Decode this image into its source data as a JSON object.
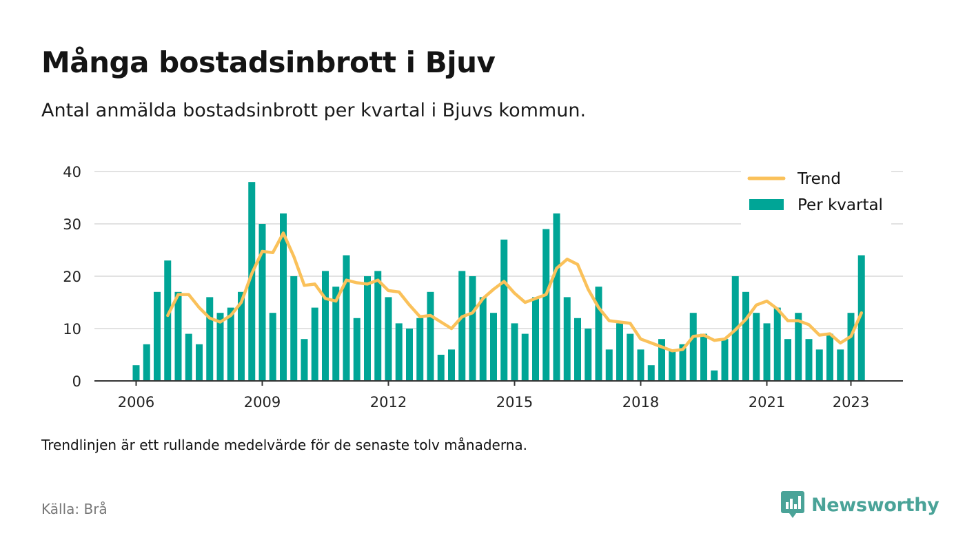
{
  "header": {
    "title": "Många bostadsinbrott i Bjuv",
    "subtitle": "Antal anmälda bostadsinbrott per kvartal i Bjuvs kommun."
  },
  "footer": {
    "note": "Trendlinjen är ett rullande medelvärde för de senaste tolv månaderna.",
    "source": "Källa: Brå",
    "brand": "Newsworthy",
    "brand_icon": "newsworthy-logo-icon"
  },
  "colors": {
    "bars": "#00a596",
    "trend": "#fac15a",
    "grid": "#d9d9d9",
    "axis": "#333333",
    "brand": "#4aa398"
  },
  "chart_data": {
    "type": "bar",
    "title": "Många bostadsinbrott i Bjuv",
    "subtitle": "Antal anmälda bostadsinbrott per kvartal i Bjuvs kommun.",
    "xlabel": "",
    "ylabel": "",
    "ylim": [
      0,
      40
    ],
    "y_ticks": [
      0,
      10,
      20,
      30,
      40
    ],
    "x_ticks": [
      "2006",
      "2009",
      "2012",
      "2015",
      "2018",
      "2021",
      "2023"
    ],
    "grid": true,
    "legend_position": "top-right",
    "x_start": "2006-Q1",
    "categories": [
      "2006-Q1",
      "2006-Q2",
      "2006-Q3",
      "2006-Q4",
      "2007-Q1",
      "2007-Q2",
      "2007-Q3",
      "2007-Q4",
      "2008-Q1",
      "2008-Q2",
      "2008-Q3",
      "2008-Q4",
      "2009-Q1",
      "2009-Q2",
      "2009-Q3",
      "2009-Q4",
      "2010-Q1",
      "2010-Q2",
      "2010-Q3",
      "2010-Q4",
      "2011-Q1",
      "2011-Q2",
      "2011-Q3",
      "2011-Q4",
      "2012-Q1",
      "2012-Q2",
      "2012-Q3",
      "2012-Q4",
      "2013-Q1",
      "2013-Q2",
      "2013-Q3",
      "2013-Q4",
      "2014-Q1",
      "2014-Q2",
      "2014-Q3",
      "2014-Q4",
      "2015-Q1",
      "2015-Q2",
      "2015-Q3",
      "2015-Q4",
      "2016-Q1",
      "2016-Q2",
      "2016-Q3",
      "2016-Q4",
      "2017-Q1",
      "2017-Q2",
      "2017-Q3",
      "2017-Q4",
      "2018-Q1",
      "2018-Q2",
      "2018-Q3",
      "2018-Q4",
      "2019-Q1",
      "2019-Q2",
      "2019-Q3",
      "2019-Q4",
      "2020-Q1",
      "2020-Q2",
      "2020-Q3",
      "2020-Q4",
      "2021-Q1",
      "2021-Q2",
      "2021-Q3",
      "2021-Q4",
      "2022-Q1",
      "2022-Q2",
      "2022-Q3",
      "2022-Q4",
      "2023-Q1",
      "2023-Q2"
    ],
    "series": [
      {
        "name": "Per kvartal",
        "type": "bar",
        "values": [
          3,
          7,
          17,
          23,
          17,
          9,
          7,
          16,
          13,
          14,
          17,
          38,
          30,
          13,
          32,
          20,
          8,
          14,
          21,
          18,
          24,
          12,
          20,
          21,
          16,
          11,
          10,
          12,
          17,
          5,
          6,
          21,
          20,
          16,
          13,
          27,
          11,
          9,
          16,
          29,
          32,
          16,
          12,
          10,
          18,
          6,
          11,
          9,
          6,
          3,
          8,
          6,
          7,
          13,
          9,
          2,
          8,
          20,
          17,
          13,
          11,
          14,
          8,
          13,
          8,
          6,
          9,
          6,
          13,
          24
        ]
      },
      {
        "name": "Trend",
        "type": "line",
        "values": [
          null,
          null,
          null,
          12.5,
          16.5,
          16.5,
          14,
          12,
          11.25,
          12.5,
          15,
          20.5,
          24.75,
          24.5,
          28.25,
          23.75,
          18.25,
          18.5,
          15.75,
          15.25,
          19.25,
          18.75,
          18.5,
          19.25,
          17.25,
          17,
          14.5,
          12.25,
          12.5,
          11.25,
          10,
          12.25,
          13,
          15.75,
          17.5,
          19,
          16.75,
          15,
          15.75,
          16.5,
          21.5,
          23.25,
          22.25,
          17.5,
          14,
          11.5,
          11.25,
          11,
          8,
          7.25,
          6.5,
          5.75,
          6,
          8.5,
          8.75,
          7.75,
          8,
          9.75,
          11.75,
          14.5,
          15.25,
          13.75,
          11.5,
          11.5,
          10.75,
          8.75,
          9,
          7.25,
          8.5,
          13
        ]
      }
    ]
  }
}
